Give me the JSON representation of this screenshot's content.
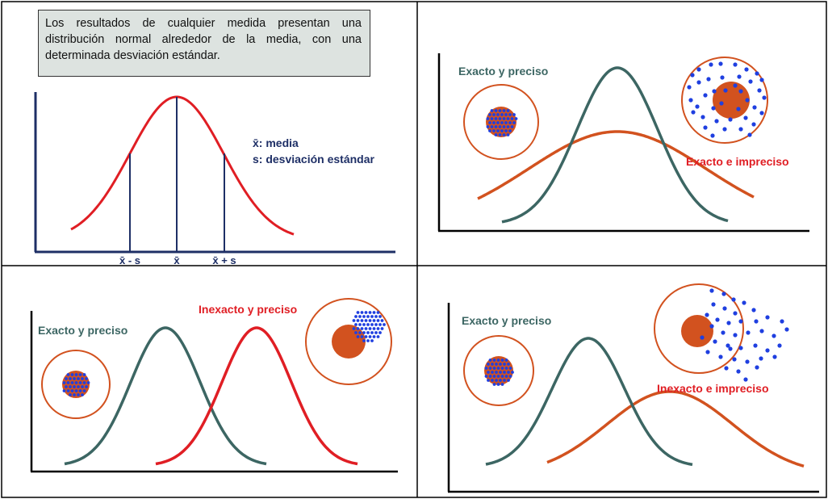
{
  "colors": {
    "teal": "#3c6663",
    "red": "#e01e24",
    "orange": "#d2521f",
    "blue": "#1f3fe0",
    "navy": "#1e2f66",
    "note_bg": "#dde3e0"
  },
  "panel1": {
    "note": "Los resultados de cualquier medida presentan una distribución normal alrededor de la media, con una determinada desviación estándar.",
    "legend_mean": "x̄: media",
    "legend_sd": "s: desviación estándar",
    "tick_left": "x̄ - s",
    "tick_mid": "x̄",
    "tick_right": "x̄ + s"
  },
  "panel2": {
    "label_a": "Exacto y preciso",
    "label_b": "Exacto e impreciso"
  },
  "panel3": {
    "label_a": "Exacto y preciso",
    "label_b": "Inexacto y preciso"
  },
  "panel4": {
    "label_a": "Exacto y preciso",
    "label_b": "Inexacto e impreciso"
  }
}
